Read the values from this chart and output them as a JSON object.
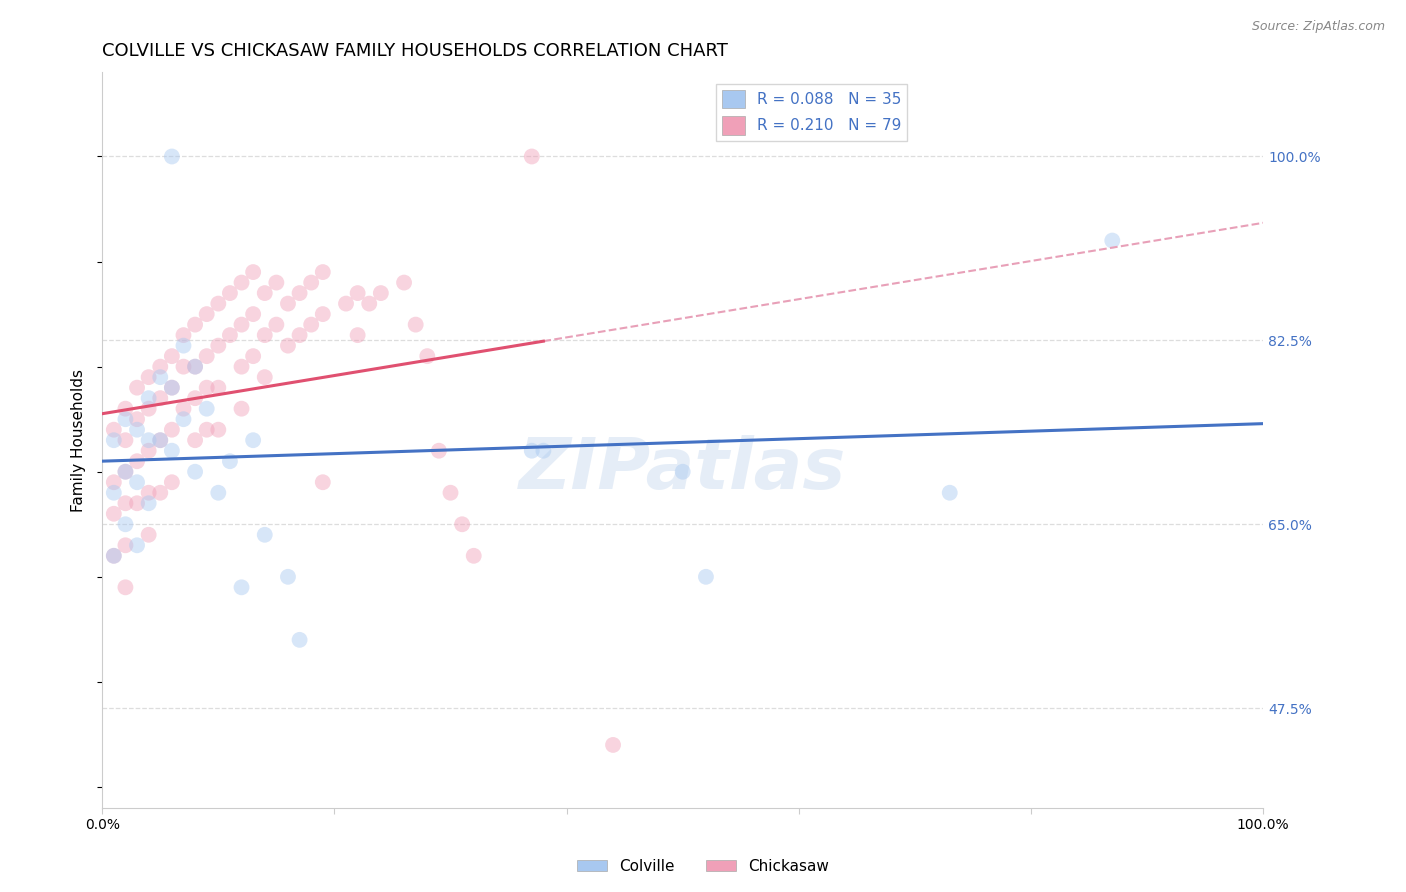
{
  "title": "COLVILLE VS CHICKASAW FAMILY HOUSEHOLDS CORRELATION CHART",
  "source": "Source: ZipAtlas.com",
  "ylabel": "Family Households",
  "colville_R": 0.088,
  "colville_N": 35,
  "chickasaw_R": 0.21,
  "chickasaw_N": 79,
  "colville_color": "#A8C8F0",
  "chickasaw_color": "#F0A0B8",
  "colville_line_color": "#4472C4",
  "chickasaw_line_color": "#E05070",
  "dashed_line_color": "#E8A0B8",
  "background_color": "#FFFFFF",
  "grid_color": "#DDDDDD",
  "ytick_color": "#4472C4",
  "ytick_labels": [
    "47.5%",
    "65.0%",
    "82.5%",
    "100.0%"
  ],
  "ytick_values": [
    0.475,
    0.65,
    0.825,
    1.0
  ],
  "xlim": [
    0.0,
    1.0
  ],
  "ylim": [
    0.38,
    1.08
  ],
  "colville_x": [
    0.06,
    0.01,
    0.01,
    0.01,
    0.02,
    0.02,
    0.02,
    0.03,
    0.03,
    0.03,
    0.04,
    0.04,
    0.04,
    0.05,
    0.05,
    0.06,
    0.06,
    0.07,
    0.07,
    0.08,
    0.08,
    0.09,
    0.1,
    0.11,
    0.12,
    0.13,
    0.14,
    0.16,
    0.17,
    0.37,
    0.38,
    0.5,
    0.52,
    0.73,
    0.87
  ],
  "colville_y": [
    1.0,
    0.73,
    0.68,
    0.62,
    0.75,
    0.7,
    0.65,
    0.74,
    0.69,
    0.63,
    0.77,
    0.73,
    0.67,
    0.79,
    0.73,
    0.78,
    0.72,
    0.82,
    0.75,
    0.8,
    0.7,
    0.76,
    0.68,
    0.71,
    0.59,
    0.73,
    0.64,
    0.6,
    0.54,
    0.72,
    0.72,
    0.7,
    0.6,
    0.68,
    0.92
  ],
  "chickasaw_x": [
    0.37,
    0.01,
    0.01,
    0.01,
    0.01,
    0.02,
    0.02,
    0.02,
    0.02,
    0.02,
    0.02,
    0.03,
    0.03,
    0.03,
    0.03,
    0.04,
    0.04,
    0.04,
    0.04,
    0.04,
    0.05,
    0.05,
    0.05,
    0.05,
    0.06,
    0.06,
    0.06,
    0.06,
    0.07,
    0.07,
    0.07,
    0.08,
    0.08,
    0.08,
    0.08,
    0.09,
    0.09,
    0.09,
    0.09,
    0.1,
    0.1,
    0.1,
    0.1,
    0.11,
    0.11,
    0.12,
    0.12,
    0.12,
    0.12,
    0.13,
    0.13,
    0.13,
    0.14,
    0.14,
    0.14,
    0.15,
    0.15,
    0.16,
    0.16,
    0.17,
    0.17,
    0.18,
    0.18,
    0.19,
    0.19,
    0.21,
    0.22,
    0.22,
    0.23,
    0.24,
    0.26,
    0.27,
    0.28,
    0.29,
    0.3,
    0.31,
    0.32,
    0.19,
    0.44
  ],
  "chickasaw_y": [
    1.0,
    0.74,
    0.69,
    0.66,
    0.62,
    0.76,
    0.73,
    0.7,
    0.67,
    0.63,
    0.59,
    0.78,
    0.75,
    0.71,
    0.67,
    0.79,
    0.76,
    0.72,
    0.68,
    0.64,
    0.8,
    0.77,
    0.73,
    0.68,
    0.81,
    0.78,
    0.74,
    0.69,
    0.83,
    0.8,
    0.76,
    0.84,
    0.8,
    0.77,
    0.73,
    0.85,
    0.81,
    0.78,
    0.74,
    0.86,
    0.82,
    0.78,
    0.74,
    0.87,
    0.83,
    0.88,
    0.84,
    0.8,
    0.76,
    0.89,
    0.85,
    0.81,
    0.87,
    0.83,
    0.79,
    0.88,
    0.84,
    0.86,
    0.82,
    0.87,
    0.83,
    0.88,
    0.84,
    0.89,
    0.85,
    0.86,
    0.87,
    0.83,
    0.86,
    0.87,
    0.88,
    0.84,
    0.81,
    0.72,
    0.68,
    0.65,
    0.62,
    0.69,
    0.44
  ],
  "watermark": "ZIPatlas",
  "marker_size": 130,
  "marker_alpha": 0.45,
  "title_fontsize": 13,
  "axis_label_fontsize": 11,
  "tick_fontsize": 10,
  "legend_fontsize": 11
}
